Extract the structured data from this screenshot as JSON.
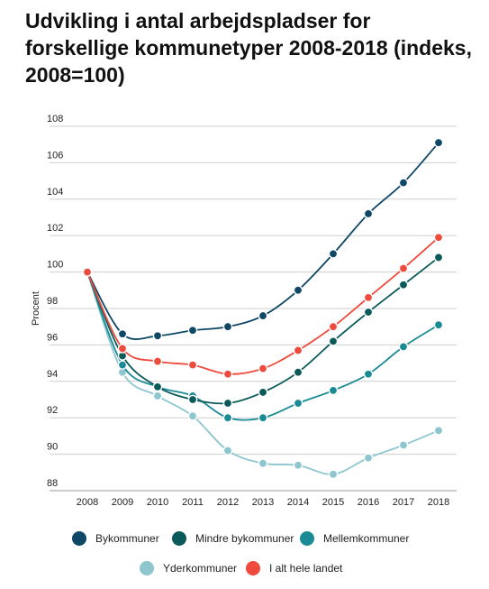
{
  "chart_data": {
    "type": "line",
    "title": "Udvikling i antal arbejdspladser for forskellige kommunetyper 2008-2018 (indeks, 2008=100)",
    "xlabel": "",
    "ylabel": "Procent",
    "ylim": [
      88,
      108
    ],
    "yticks": [
      "88",
      "90",
      "92",
      "94",
      "96",
      "98",
      "100",
      "102",
      "104",
      "106",
      "108"
    ],
    "categories": [
      "2008",
      "2009",
      "2010",
      "2011",
      "2012",
      "2013",
      "2014",
      "2015",
      "2016",
      "2017",
      "2018"
    ],
    "grid": true,
    "legend_position": "bottom",
    "series": [
      {
        "name": "Bykommuner",
        "color": "#0f4766",
        "values": [
          100,
          96.6,
          96.5,
          96.8,
          97.0,
          97.6,
          99.0,
          101.0,
          103.2,
          104.9,
          107.1
        ]
      },
      {
        "name": "Mindre bykommuner",
        "color": "#0b5a5a",
        "values": [
          100,
          95.4,
          93.7,
          93.0,
          92.8,
          93.4,
          94.5,
          96.2,
          97.8,
          99.3,
          100.8
        ]
      },
      {
        "name": "Mellemkommuner",
        "color": "#1a8b94",
        "values": [
          100,
          94.9,
          93.7,
          93.2,
          92.0,
          92.0,
          92.8,
          93.5,
          94.4,
          95.9,
          97.1
        ]
      },
      {
        "name": "Yderkommuner",
        "color": "#8dc6cf",
        "values": [
          100,
          94.5,
          93.2,
          92.1,
          90.2,
          89.5,
          89.4,
          88.9,
          89.8,
          90.5,
          91.3
        ]
      },
      {
        "name": "I alt hele landet",
        "color": "#ee4b3d",
        "values": [
          100,
          95.8,
          95.1,
          94.9,
          94.4,
          94.7,
          95.7,
          97.0,
          98.6,
          100.2,
          101.9
        ]
      }
    ]
  }
}
